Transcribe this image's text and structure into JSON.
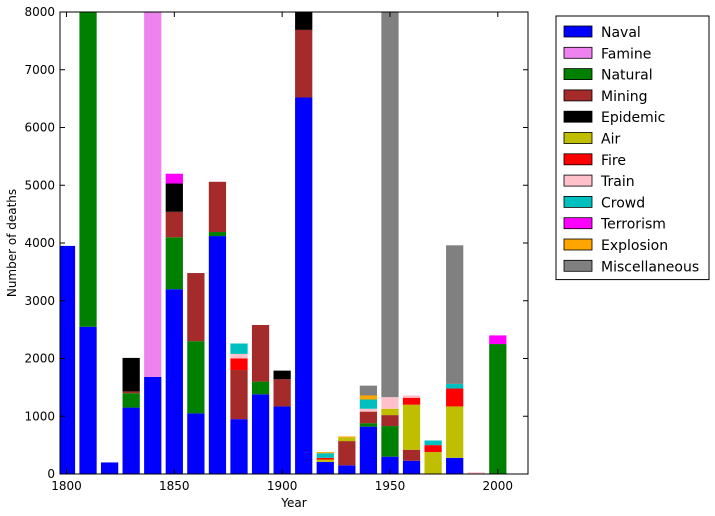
{
  "chart_data": {
    "type": "bar",
    "stacked": true,
    "xlabel": "Year",
    "ylabel": "Number of deaths",
    "xlim": [
      1797,
      2014
    ],
    "ylim": [
      0,
      8000
    ],
    "xticks": [
      1800,
      1850,
      1900,
      1950,
      2000
    ],
    "yticks": [
      0,
      1000,
      2000,
      3000,
      4000,
      5000,
      6000,
      7000,
      8000
    ],
    "bar_width_years": 8,
    "legend_position": "outside-right-top",
    "categories": [
      1800,
      1810,
      1820,
      1830,
      1840,
      1850,
      1860,
      1870,
      1880,
      1890,
      1900,
      1910,
      1920,
      1930,
      1940,
      1950,
      1960,
      1970,
      1980,
      1990,
      2000
    ],
    "series": [
      {
        "name": "Naval",
        "color": "#0000ff",
        "values": [
          3950,
          2550,
          200,
          1150,
          1680,
          3200,
          1050,
          4120,
          950,
          1380,
          1170,
          6520,
          210,
          150,
          820,
          300,
          230,
          0,
          280,
          0,
          0
        ]
      },
      {
        "name": "Famine",
        "color": "#ee82ee",
        "values": [
          0,
          0,
          0,
          0,
          6320,
          0,
          0,
          0,
          0,
          0,
          0,
          0,
          0,
          0,
          0,
          0,
          0,
          0,
          0,
          0,
          0
        ]
      },
      {
        "name": "Natural",
        "color": "#008000",
        "values": [
          0,
          5450,
          0,
          250,
          0,
          900,
          1250,
          70,
          0,
          220,
          0,
          0,
          0,
          0,
          60,
          530,
          0,
          0,
          0,
          0,
          2250
        ]
      },
      {
        "name": "Mining",
        "color": "#a52a2a",
        "values": [
          0,
          0,
          0,
          30,
          0,
          440,
          1180,
          870,
          850,
          980,
          470,
          1170,
          0,
          420,
          200,
          190,
          190,
          0,
          0,
          0,
          0
        ]
      },
      {
        "name": "Epidemic",
        "color": "#000000",
        "values": [
          0,
          0,
          0,
          580,
          0,
          490,
          0,
          0,
          0,
          0,
          150,
          310,
          0,
          0,
          0,
          0,
          0,
          0,
          0,
          0,
          0
        ]
      },
      {
        "name": "Air",
        "color": "#bfbf00",
        "values": [
          0,
          0,
          0,
          0,
          0,
          0,
          0,
          0,
          0,
          0,
          0,
          0,
          40,
          60,
          0,
          110,
          780,
          380,
          890,
          0,
          0
        ]
      },
      {
        "name": "Fire",
        "color": "#ff0000",
        "values": [
          0,
          0,
          0,
          0,
          0,
          0,
          0,
          0,
          200,
          0,
          0,
          0,
          30,
          0,
          0,
          0,
          120,
          120,
          310,
          0,
          0
        ]
      },
      {
        "name": "Train",
        "color": "#ffc0cb",
        "values": [
          0,
          0,
          0,
          0,
          0,
          0,
          0,
          0,
          80,
          0,
          0,
          0,
          0,
          0,
          50,
          200,
          40,
          0,
          0,
          30,
          0
        ]
      },
      {
        "name": "Crowd",
        "color": "#00bfbf",
        "values": [
          0,
          0,
          0,
          0,
          0,
          0,
          0,
          0,
          180,
          0,
          0,
          0,
          80,
          0,
          160,
          0,
          0,
          80,
          80,
          0,
          0
        ]
      },
      {
        "name": "Terrorism",
        "color": "#ff00ff",
        "values": [
          0,
          0,
          0,
          0,
          0,
          170,
          0,
          0,
          0,
          0,
          0,
          0,
          0,
          0,
          0,
          0,
          0,
          0,
          0,
          0,
          150
        ]
      },
      {
        "name": "Explosion",
        "color": "#ffa500",
        "values": [
          0,
          0,
          0,
          0,
          0,
          0,
          0,
          0,
          0,
          0,
          0,
          0,
          20,
          20,
          70,
          0,
          0,
          0,
          0,
          0,
          0
        ]
      },
      {
        "name": "Miscellaneous",
        "color": "#808080",
        "values": [
          0,
          0,
          0,
          0,
          0,
          0,
          0,
          0,
          0,
          0,
          0,
          0,
          0,
          0,
          170,
          6670,
          0,
          0,
          2400,
          0,
          0
        ]
      }
    ]
  }
}
